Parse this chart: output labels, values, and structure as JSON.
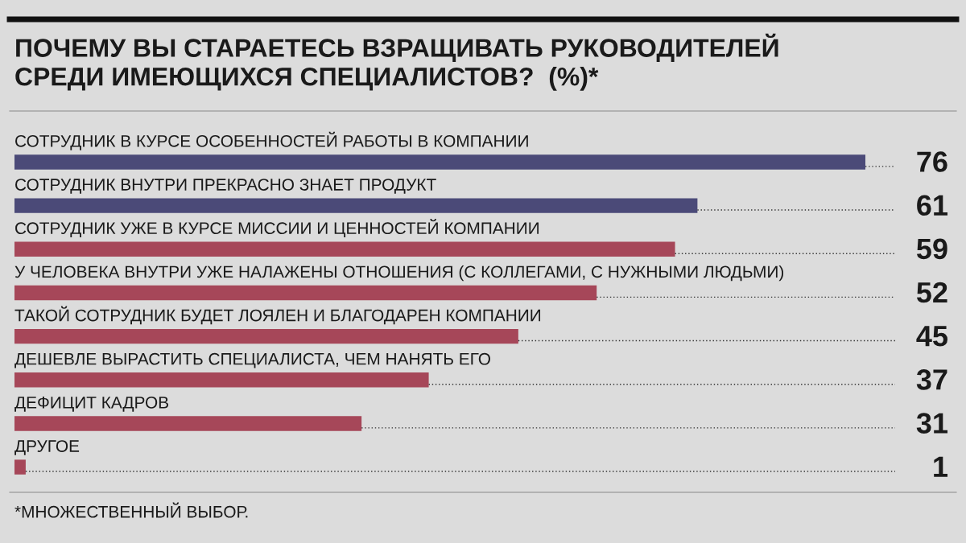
{
  "chart_data": {
    "type": "bar",
    "orientation": "horizontal",
    "title": "ПОЧЕМУ ВЫ СТАРАЕТЕСЬ ВЗРАЩИВАТЬ РУКОВОДИТЕЛЕЙ\nСРЕДИ ИМЕЮЩИХСЯ СПЕЦИАЛИСТОВ?  (%)*",
    "categories": [
      "СОТРУДНИК В КУРСЕ ОСОБЕННОСТЕЙ РАБОТЫ В КОМПАНИИ",
      "СОТРУДНИК ВНУТРИ ПРЕКРАСНО ЗНАЕТ ПРОДУКТ",
      "СОТРУДНИК УЖЕ В КУРСЕ МИССИИ И ЦЕННОСТЕЙ КОМПАНИИ",
      "У ЧЕЛОВЕКА ВНУТРИ УЖЕ НАЛАЖЕНЫ ОТНОШЕНИЯ (С КОЛЛЕГАМИ, С НУЖНЫМИ ЛЮДЬМИ)",
      "ТАКОЙ СОТРУДНИК БУДЕТ ЛОЯЛЕН И БЛАГОДАРЕН КОМПАНИИ",
      "ДЕШЕВЛЕ ВЫРАСТИТЬ СПЕЦИАЛИСТА, ЧЕМ НАНЯТЬ ЕГО",
      "ДЕФИЦИТ КАДРОВ",
      "ДРУГОЕ"
    ],
    "values": [
      76,
      61,
      59,
      52,
      45,
      37,
      31,
      1
    ],
    "colors": [
      "#4b4a78",
      "#4b4a78",
      "#a64759",
      "#a64759",
      "#a64759",
      "#a64759",
      "#a64759",
      "#a64759"
    ],
    "data_labels": true,
    "annotations": [
      "*МНОЖЕСТВЕННЫЙ ВЫБОР."
    ]
  }
}
